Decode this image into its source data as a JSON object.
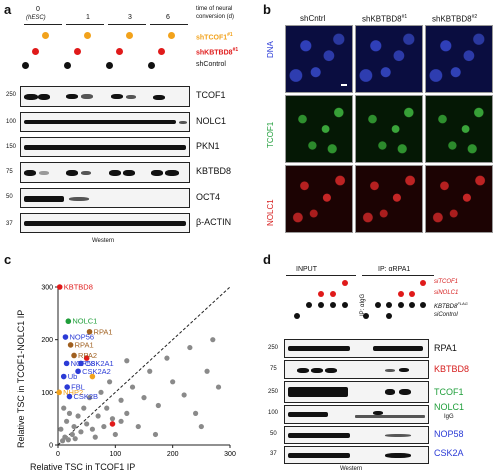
{
  "panel_a": {
    "letter": "a",
    "timepoints": [
      "0",
      "1",
      "3",
      "6"
    ],
    "hesc_label": "(hESC)",
    "time_label_line1": "time of neural",
    "time_label_line2": "conversion (d)",
    "cond_tcof1": "shTCOF1",
    "cond_tcof1_sup": "#1",
    "cond_kbtbd8": "shKBTBD8",
    "cond_kbtbd8_sup": "#1",
    "cond_control": "shControl",
    "blots": [
      {
        "label": "TCOF1",
        "marker": "250"
      },
      {
        "label": "NOLC1",
        "marker": "100"
      },
      {
        "label": "PKN1",
        "marker": "150"
      },
      {
        "label": "KBTBD8",
        "marker": "75"
      },
      {
        "label": "OCT4",
        "marker": "50"
      },
      {
        "label": "β-ACTIN",
        "marker": "37"
      }
    ],
    "footer": "Western"
  },
  "panel_b": {
    "letter": "b",
    "columns": [
      "shCntrl",
      "shKBTBD8",
      "shKBTBD8"
    ],
    "column_sups": [
      "",
      "#1",
      "#2"
    ],
    "rows": [
      "DNA",
      "TCOF1",
      "NOLC1"
    ],
    "colors": {
      "dna": "#2b3bd6",
      "tcof1": "#1f9e3a",
      "nolc1": "#d61c1c"
    }
  },
  "panel_c": {
    "letter": "c",
    "x_label": "Relative TSC in TCOF1 IP",
    "y_label": "Relative TSC in TCOF1-NOLC1 IP"
  },
  "panel_d": {
    "letter": "d",
    "input_label": "INPUT",
    "ip_label": "IP: αRPA1",
    "ip_igg": "IP: αIgG",
    "cond_sitcof1": "siTCOF1",
    "cond_sinolc1": "siNOLC1",
    "cond_kbtbd8": "KBTBD8",
    "cond_kbtbd8_sup": "FLAG",
    "cond_sicontrol": "siControl",
    "blots": [
      {
        "label": "RPA1",
        "marker": "250",
        "color": "#111111"
      },
      {
        "label": "KBTBD8",
        "marker": "75",
        "color": "#d61c1c"
      },
      {
        "label": "TCOF1",
        "marker": "250",
        "color": "#1f9e3a"
      },
      {
        "label": "NOLC1",
        "marker": "100",
        "color": "#1f9e3a"
      },
      {
        "label": "NOP58",
        "marker": "50",
        "color": "#2b3bd6"
      },
      {
        "label": "CSK2A",
        "marker": "37",
        "color": "#2b3bd6"
      }
    ],
    "igg_label": "IgG",
    "footer": "Western"
  },
  "chart_data": {
    "type": "scatter",
    "title": "",
    "xlabel": "Relative TSC in TCOF1 IP",
    "ylabel": "Relative TSC in TCOF1-NOLC1 IP",
    "xlim": [
      0,
      300
    ],
    "ylim": [
      0,
      300
    ],
    "xticks": [
      0,
      100,
      200,
      300
    ],
    "yticks": [
      0,
      100,
      200,
      300
    ],
    "diagonal": true,
    "labeled_points": [
      {
        "name": "KBTBD8",
        "x": 3,
        "y": 300,
        "color": "#e01a1a"
      },
      {
        "name": "NOLC1",
        "x": 18,
        "y": 235,
        "color": "#1f9e3a"
      },
      {
        "name": "NOP56",
        "x": 13,
        "y": 205,
        "color": "#2b3bd6"
      },
      {
        "name": "RPA1",
        "x": 55,
        "y": 215,
        "color": "#a06020"
      },
      {
        "name": "RPA1",
        "x": 22,
        "y": 190,
        "color": "#a06020"
      },
      {
        "name": "RPA2",
        "x": 28,
        "y": 170,
        "color": "#a06020"
      },
      {
        "name": "NOP58",
        "x": 15,
        "y": 155,
        "color": "#2b3bd6"
      },
      {
        "name": "CSK2A1",
        "x": 40,
        "y": 155,
        "color": "#2b3bd6"
      },
      {
        "name": "CSK2A2",
        "x": 35,
        "y": 140,
        "color": "#2b3bd6"
      },
      {
        "name": "Ub",
        "x": 10,
        "y": 130,
        "color": "#2b3bd6"
      },
      {
        "name": "FBL",
        "x": 16,
        "y": 110,
        "color": "#2b3bd6"
      },
      {
        "name": "NHP2",
        "x": 2,
        "y": 100,
        "color": "#f2a21b"
      },
      {
        "name": "CSK2B",
        "x": 20,
        "y": 92,
        "color": "#2b3bd6"
      }
    ],
    "background_points": [
      {
        "x": 8,
        "y": 8
      },
      {
        "x": 12,
        "y": 15
      },
      {
        "x": 18,
        "y": 10
      },
      {
        "x": 25,
        "y": 20
      },
      {
        "x": 5,
        "y": 30
      },
      {
        "x": 30,
        "y": 12
      },
      {
        "x": 40,
        "y": 25
      },
      {
        "x": 50,
        "y": 40
      },
      {
        "x": 60,
        "y": 30
      },
      {
        "x": 70,
        "y": 55
      },
      {
        "x": 85,
        "y": 70
      },
      {
        "x": 95,
        "y": 50
      },
      {
        "x": 110,
        "y": 85
      },
      {
        "x": 120,
        "y": 60
      },
      {
        "x": 130,
        "y": 110
      },
      {
        "x": 150,
        "y": 90
      },
      {
        "x": 160,
        "y": 140
      },
      {
        "x": 175,
        "y": 75
      },
      {
        "x": 190,
        "y": 165
      },
      {
        "x": 200,
        "y": 120
      },
      {
        "x": 220,
        "y": 95
      },
      {
        "x": 230,
        "y": 185
      },
      {
        "x": 240,
        "y": 60
      },
      {
        "x": 260,
        "y": 140
      },
      {
        "x": 270,
        "y": 200
      },
      {
        "x": 280,
        "y": 110
      },
      {
        "x": 35,
        "y": 55
      },
      {
        "x": 45,
        "y": 70
      },
      {
        "x": 15,
        "y": 45
      },
      {
        "x": 20,
        "y": 60
      },
      {
        "x": 65,
        "y": 15
      },
      {
        "x": 80,
        "y": 35
      },
      {
        "x": 100,
        "y": 20
      },
      {
        "x": 140,
        "y": 35
      },
      {
        "x": 170,
        "y": 20
      },
      {
        "x": 250,
        "y": 35
      },
      {
        "x": 10,
        "y": 70
      },
      {
        "x": 28,
        "y": 35
      },
      {
        "x": 55,
        "y": 90
      },
      {
        "x": 90,
        "y": 120
      },
      {
        "x": 75,
        "y": 100
      },
      {
        "x": 120,
        "y": 160
      },
      {
        "x": 110,
        "y": 45
      }
    ],
    "red_points": [
      {
        "x": 50,
        "y": 165
      },
      {
        "x": 95,
        "y": 40
      }
    ],
    "orange_points": [
      {
        "x": 60,
        "y": 130
      }
    ]
  }
}
